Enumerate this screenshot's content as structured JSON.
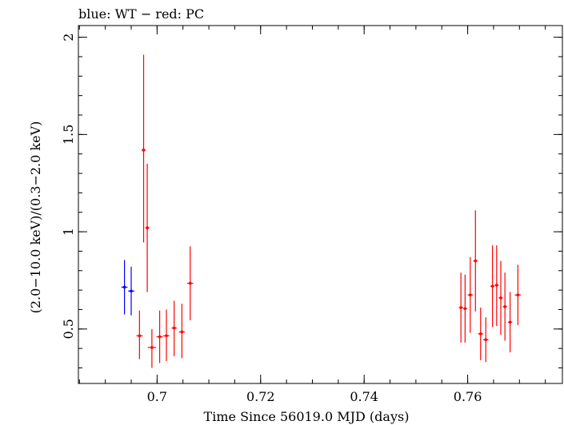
{
  "chart_data": {
    "type": "scatter",
    "title": "blue: WT − red: PC",
    "xlabel": "Time Since 56019.0 MJD (days)",
    "ylabel": "(2.0−10.0 keV)/(0.3−2.0 keV)",
    "xlim": [
      0.6848,
      0.7783
    ],
    "ylim": [
      0.22,
      2.06
    ],
    "x_ticks": [
      {
        "value": 0.7,
        "label": "0.7"
      },
      {
        "value": 0.72,
        "label": "0.72"
      },
      {
        "value": 0.74,
        "label": "0.74"
      },
      {
        "value": 0.76,
        "label": "0.76"
      }
    ],
    "y_ticks": [
      {
        "value": 0.5,
        "label": "0.5"
      },
      {
        "value": 1.0,
        "label": "1"
      },
      {
        "value": 1.5,
        "label": "1.5"
      },
      {
        "value": 2.0,
        "label": "2"
      }
    ],
    "x_minor_step": 0.005,
    "y_minor_step": 0.1,
    "grid": false,
    "legend": "none",
    "series": [
      {
        "color": "#0000ff",
        "points": [
          {
            "x": 0.6937,
            "xerr": 0.0006,
            "y": 0.715,
            "ylo": 0.575,
            "yhi": 0.855
          },
          {
            "x": 0.695,
            "xerr": 0.0006,
            "y": 0.695,
            "ylo": 0.57,
            "yhi": 0.82
          }
        ]
      },
      {
        "color": "#ff0000",
        "points": [
          {
            "x": 0.6966,
            "xerr": 0.0006,
            "y": 0.465,
            "ylo": 0.345,
            "yhi": 0.595
          },
          {
            "x": 0.6974,
            "xerr": 0.0004,
            "y": 1.42,
            "ylo": 0.945,
            "yhi": 1.91
          },
          {
            "x": 0.6981,
            "xerr": 0.0004,
            "y": 1.02,
            "ylo": 0.69,
            "yhi": 1.35
          },
          {
            "x": 0.699,
            "xerr": 0.0008,
            "y": 0.405,
            "ylo": 0.3,
            "yhi": 0.5
          },
          {
            "x": 0.7005,
            "xerr": 0.0006,
            "y": 0.46,
            "ylo": 0.325,
            "yhi": 0.595
          },
          {
            "x": 0.7018,
            "xerr": 0.0006,
            "y": 0.465,
            "ylo": 0.335,
            "yhi": 0.6
          },
          {
            "x": 0.7033,
            "xerr": 0.0005,
            "y": 0.505,
            "ylo": 0.36,
            "yhi": 0.645
          },
          {
            "x": 0.7048,
            "xerr": 0.0006,
            "y": 0.485,
            "ylo": 0.35,
            "yhi": 0.63
          },
          {
            "x": 0.7064,
            "xerr": 0.0006,
            "y": 0.735,
            "ylo": 0.545,
            "yhi": 0.925
          },
          {
            "x": 0.7587,
            "xerr": 0.0004,
            "y": 0.61,
            "ylo": 0.43,
            "yhi": 0.79
          },
          {
            "x": 0.7595,
            "xerr": 0.0004,
            "y": 0.605,
            "ylo": 0.43,
            "yhi": 0.78
          },
          {
            "x": 0.7605,
            "xerr": 0.0005,
            "y": 0.675,
            "ylo": 0.48,
            "yhi": 0.87
          },
          {
            "x": 0.7615,
            "xerr": 0.0004,
            "y": 0.85,
            "ylo": 0.59,
            "yhi": 1.11
          },
          {
            "x": 0.7625,
            "xerr": 0.0005,
            "y": 0.475,
            "ylo": 0.34,
            "yhi": 0.61
          },
          {
            "x": 0.7635,
            "xerr": 0.0005,
            "y": 0.445,
            "ylo": 0.33,
            "yhi": 0.56
          },
          {
            "x": 0.7648,
            "xerr": 0.0004,
            "y": 0.72,
            "ylo": 0.51,
            "yhi": 0.93
          },
          {
            "x": 0.7656,
            "xerr": 0.0004,
            "y": 0.725,
            "ylo": 0.515,
            "yhi": 0.93
          },
          {
            "x": 0.7664,
            "xerr": 0.0004,
            "y": 0.66,
            "ylo": 0.47,
            "yhi": 0.85
          },
          {
            "x": 0.7672,
            "xerr": 0.0004,
            "y": 0.615,
            "ylo": 0.44,
            "yhi": 0.79
          },
          {
            "x": 0.7682,
            "xerr": 0.0004,
            "y": 0.535,
            "ylo": 0.38,
            "yhi": 0.69
          },
          {
            "x": 0.7697,
            "xerr": 0.0006,
            "y": 0.675,
            "ylo": 0.52,
            "yhi": 0.83
          }
        ]
      }
    ]
  }
}
